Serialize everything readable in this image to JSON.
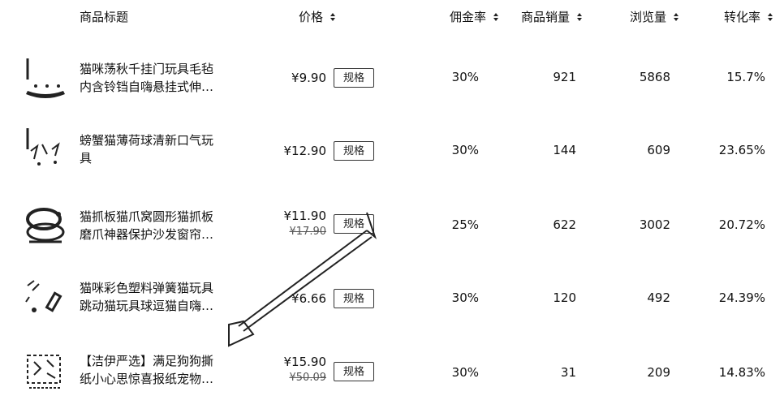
{
  "columns": {
    "title": "商品标题",
    "price": "价格",
    "commission": "佣金率",
    "sales": "商品销量",
    "views": "浏览量",
    "conversion": "转化率"
  },
  "spec_label": "规格",
  "products": [
    {
      "title_line1": "猫咪荡秋千挂门玩具毛毡",
      "title_line2": "内含铃铛自嗨悬挂式伸…",
      "price": "¥9.90",
      "old_price": "",
      "commission": "30%",
      "sales": "921",
      "views": "5868",
      "conversion": "15.7%"
    },
    {
      "title_line1": "螃蟹猫薄荷球清新口气玩",
      "title_line2": "具",
      "price": "¥12.90",
      "old_price": "",
      "commission": "30%",
      "sales": "144",
      "views": "609",
      "conversion": "23.65%"
    },
    {
      "title_line1": "猫抓板猫爪窝圆形猫抓板",
      "title_line2": "磨爪神器保护沙发窗帘…",
      "price": "¥11.90",
      "old_price": "¥17.90",
      "commission": "25%",
      "sales": "622",
      "views": "3002",
      "conversion": "20.72%"
    },
    {
      "title_line1": "猫咪彩色塑料弹簧猫玩具",
      "title_line2": "跳动猫玩具球逗猫自嗨…",
      "price": "¥6.66",
      "old_price": "",
      "commission": "30%",
      "sales": "120",
      "views": "492",
      "conversion": "24.39%"
    },
    {
      "title_line1": "【洁伊严选】满足狗狗撕",
      "title_line2": "纸小心思惊喜报纸宠物…",
      "price": "¥15.90",
      "old_price": "¥50.09",
      "commission": "30%",
      "sales": "31",
      "views": "209",
      "conversion": "14.83%"
    }
  ],
  "colors": {
    "text": "#111111",
    "border": "#333333",
    "arrow": "#222222"
  }
}
